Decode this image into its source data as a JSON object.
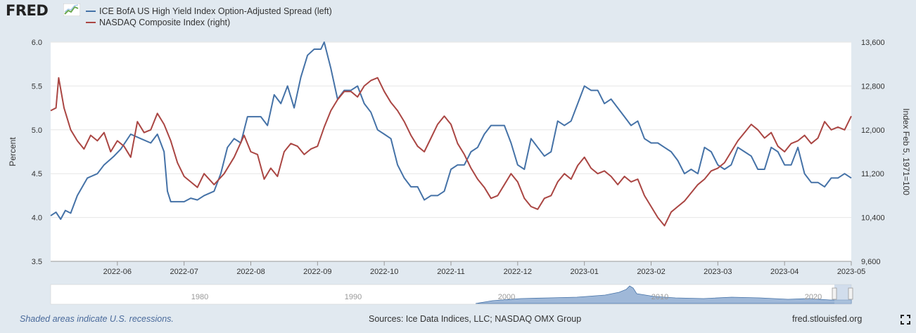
{
  "brand": {
    "name": "FRED"
  },
  "legend": {
    "items": [
      {
        "label": "ICE BofA US High Yield Index Option-Adjusted Spread (left)",
        "color": "#4572a7"
      },
      {
        "label": "NASDAQ Composite Index (right)",
        "color": "#aa4643"
      }
    ]
  },
  "chart_data": {
    "type": "line",
    "x_ticks": [
      "2022-06",
      "2022-07",
      "2022-08",
      "2022-09",
      "2022-10",
      "2022-11",
      "2022-12",
      "2023-01",
      "2023-02",
      "2023-03",
      "2023-04",
      "2023-05"
    ],
    "left_axis": {
      "label": "Percent",
      "ylim": [
        3.5,
        6.0
      ],
      "ticks": [
        "3.5",
        "4.0",
        "4.5",
        "5.0",
        "5.5",
        "6.0"
      ]
    },
    "right_axis": {
      "label": "Index Feb 5, 1971=100",
      "ylim": [
        9600,
        13600
      ],
      "ticks": [
        "9,600",
        "10,400",
        "11,200",
        "12,000",
        "12,800",
        "13,600"
      ]
    },
    "x_range_months": [
      0,
      12
    ],
    "series": [
      {
        "name": "ICE BofA US High Yield Index Option-Adjusted Spread (left)",
        "axis": "left",
        "color": "#4572a7",
        "points": [
          [
            0,
            4.02
          ],
          [
            0.08,
            4.06
          ],
          [
            0.15,
            3.98
          ],
          [
            0.22,
            4.08
          ],
          [
            0.3,
            4.05
          ],
          [
            0.4,
            4.25
          ],
          [
            0.55,
            4.45
          ],
          [
            0.7,
            4.5
          ],
          [
            0.8,
            4.6
          ],
          [
            0.95,
            4.7
          ],
          [
            1.05,
            4.78
          ],
          [
            1.2,
            4.95
          ],
          [
            1.35,
            4.9
          ],
          [
            1.5,
            4.85
          ],
          [
            1.6,
            4.95
          ],
          [
            1.7,
            4.75
          ],
          [
            1.75,
            4.3
          ],
          [
            1.8,
            4.18
          ],
          [
            1.9,
            4.18
          ],
          [
            2.0,
            4.18
          ],
          [
            2.1,
            4.22
          ],
          [
            2.2,
            4.2
          ],
          [
            2.3,
            4.25
          ],
          [
            2.45,
            4.3
          ],
          [
            2.55,
            4.5
          ],
          [
            2.65,
            4.8
          ],
          [
            2.75,
            4.9
          ],
          [
            2.85,
            4.85
          ],
          [
            2.95,
            5.15
          ],
          [
            3.05,
            5.15
          ],
          [
            3.15,
            5.15
          ],
          [
            3.25,
            5.05
          ],
          [
            3.35,
            5.4
          ],
          [
            3.45,
            5.3
          ],
          [
            3.55,
            5.5
          ],
          [
            3.65,
            5.25
          ],
          [
            3.75,
            5.6
          ],
          [
            3.85,
            5.85
          ],
          [
            3.95,
            5.92
          ],
          [
            4.05,
            5.92
          ],
          [
            4.1,
            6.0
          ],
          [
            4.2,
            5.7
          ],
          [
            4.3,
            5.35
          ],
          [
            4.4,
            5.45
          ],
          [
            4.5,
            5.45
          ],
          [
            4.6,
            5.5
          ],
          [
            4.7,
            5.3
          ],
          [
            4.8,
            5.2
          ],
          [
            4.9,
            5.0
          ],
          [
            5.0,
            4.95
          ],
          [
            5.1,
            4.9
          ],
          [
            5.2,
            4.6
          ],
          [
            5.3,
            4.45
          ],
          [
            5.4,
            4.35
          ],
          [
            5.5,
            4.35
          ],
          [
            5.6,
            4.2
          ],
          [
            5.7,
            4.25
          ],
          [
            5.8,
            4.25
          ],
          [
            5.9,
            4.3
          ],
          [
            6.0,
            4.55
          ],
          [
            6.1,
            4.6
          ],
          [
            6.2,
            4.6
          ],
          [
            6.3,
            4.75
          ],
          [
            6.4,
            4.8
          ],
          [
            6.5,
            4.95
          ],
          [
            6.6,
            5.05
          ],
          [
            6.7,
            5.05
          ],
          [
            6.8,
            5.05
          ],
          [
            6.9,
            4.85
          ],
          [
            7.0,
            4.6
          ],
          [
            7.1,
            4.55
          ],
          [
            7.2,
            4.9
          ],
          [
            7.3,
            4.8
          ],
          [
            7.4,
            4.7
          ],
          [
            7.5,
            4.75
          ],
          [
            7.6,
            5.1
          ],
          [
            7.7,
            5.05
          ],
          [
            7.8,
            5.1
          ],
          [
            7.9,
            5.3
          ],
          [
            8.0,
            5.5
          ],
          [
            8.1,
            5.45
          ],
          [
            8.2,
            5.45
          ],
          [
            8.3,
            5.3
          ],
          [
            8.4,
            5.35
          ],
          [
            8.5,
            5.25
          ],
          [
            8.6,
            5.15
          ],
          [
            8.7,
            5.05
          ],
          [
            8.8,
            5.1
          ],
          [
            8.9,
            4.9
          ],
          [
            9.0,
            4.85
          ],
          [
            9.1,
            4.85
          ],
          [
            9.2,
            4.8
          ],
          [
            9.3,
            4.75
          ],
          [
            9.4,
            4.65
          ],
          [
            9.5,
            4.5
          ],
          [
            9.6,
            4.55
          ],
          [
            9.7,
            4.5
          ],
          [
            9.8,
            4.8
          ],
          [
            9.9,
            4.75
          ],
          [
            10.0,
            4.6
          ],
          [
            10.1,
            4.55
          ],
          [
            10.2,
            4.6
          ],
          [
            10.3,
            4.8
          ],
          [
            10.4,
            4.75
          ],
          [
            10.5,
            4.7
          ],
          [
            10.6,
            4.55
          ],
          [
            10.7,
            4.55
          ],
          [
            10.8,
            4.8
          ],
          [
            10.9,
            4.75
          ],
          [
            11.0,
            4.6
          ],
          [
            11.1,
            4.6
          ],
          [
            11.2,
            4.8
          ],
          [
            11.3,
            4.5
          ],
          [
            11.4,
            4.4
          ],
          [
            11.5,
            4.4
          ],
          [
            11.6,
            4.35
          ],
          [
            11.7,
            4.45
          ],
          [
            11.8,
            4.45
          ],
          [
            11.9,
            4.5
          ],
          [
            12.0,
            4.45
          ]
        ]
      },
      {
        "name": "NASDAQ Composite Index (right)",
        "axis": "right",
        "color": "#aa4643",
        "points": [
          [
            0,
            12350
          ],
          [
            0.08,
            12400
          ],
          [
            0.12,
            12950
          ],
          [
            0.2,
            12400
          ],
          [
            0.3,
            12000
          ],
          [
            0.4,
            11800
          ],
          [
            0.5,
            11650
          ],
          [
            0.6,
            11900
          ],
          [
            0.7,
            11800
          ],
          [
            0.8,
            11950
          ],
          [
            0.9,
            11600
          ],
          [
            1.0,
            11800
          ],
          [
            1.1,
            11700
          ],
          [
            1.2,
            11500
          ],
          [
            1.3,
            12150
          ],
          [
            1.4,
            11950
          ],
          [
            1.5,
            12000
          ],
          [
            1.6,
            12300
          ],
          [
            1.7,
            12100
          ],
          [
            1.8,
            11800
          ],
          [
            1.9,
            11400
          ],
          [
            2.0,
            11150
          ],
          [
            2.1,
            11050
          ],
          [
            2.2,
            10950
          ],
          [
            2.3,
            11200
          ],
          [
            2.45,
            11000
          ],
          [
            2.6,
            11200
          ],
          [
            2.75,
            11500
          ],
          [
            2.9,
            11900
          ],
          [
            3.0,
            11600
          ],
          [
            3.1,
            11550
          ],
          [
            3.2,
            11100
          ],
          [
            3.3,
            11300
          ],
          [
            3.4,
            11150
          ],
          [
            3.5,
            11600
          ],
          [
            3.6,
            11750
          ],
          [
            3.7,
            11700
          ],
          [
            3.8,
            11550
          ],
          [
            3.9,
            11650
          ],
          [
            4.0,
            11700
          ],
          [
            4.1,
            12050
          ],
          [
            4.2,
            12350
          ],
          [
            4.3,
            12550
          ],
          [
            4.4,
            12700
          ],
          [
            4.5,
            12700
          ],
          [
            4.6,
            12600
          ],
          [
            4.7,
            12800
          ],
          [
            4.8,
            12900
          ],
          [
            4.9,
            12950
          ],
          [
            5.0,
            12700
          ],
          [
            5.1,
            12500
          ],
          [
            5.2,
            12350
          ],
          [
            5.3,
            12150
          ],
          [
            5.4,
            11900
          ],
          [
            5.5,
            11700
          ],
          [
            5.6,
            11600
          ],
          [
            5.7,
            11850
          ],
          [
            5.8,
            12100
          ],
          [
            5.9,
            12250
          ],
          [
            6.0,
            12100
          ],
          [
            6.1,
            11750
          ],
          [
            6.2,
            11550
          ],
          [
            6.3,
            11300
          ],
          [
            6.4,
            11100
          ],
          [
            6.5,
            10950
          ],
          [
            6.6,
            10750
          ],
          [
            6.7,
            10800
          ],
          [
            6.8,
            11000
          ],
          [
            6.9,
            11200
          ],
          [
            7.0,
            11050
          ],
          [
            7.1,
            10750
          ],
          [
            7.2,
            10600
          ],
          [
            7.3,
            10550
          ],
          [
            7.4,
            10750
          ],
          [
            7.5,
            10800
          ],
          [
            7.6,
            11050
          ],
          [
            7.7,
            11200
          ],
          [
            7.8,
            11100
          ],
          [
            7.9,
            11350
          ],
          [
            8.0,
            11500
          ],
          [
            8.1,
            11300
          ],
          [
            8.2,
            11200
          ],
          [
            8.3,
            11250
          ],
          [
            8.4,
            11150
          ],
          [
            8.5,
            11000
          ],
          [
            8.6,
            11150
          ],
          [
            8.7,
            11050
          ],
          [
            8.8,
            11100
          ],
          [
            8.9,
            10800
          ],
          [
            9.0,
            10600
          ],
          [
            9.1,
            10400
          ],
          [
            9.2,
            10250
          ],
          [
            9.3,
            10500
          ],
          [
            9.4,
            10600
          ],
          [
            9.5,
            10700
          ],
          [
            9.6,
            10850
          ],
          [
            9.7,
            11000
          ],
          [
            9.8,
            11100
          ],
          [
            9.9,
            11250
          ],
          [
            10.0,
            11300
          ],
          [
            10.1,
            11400
          ],
          [
            10.2,
            11600
          ],
          [
            10.3,
            11800
          ],
          [
            10.4,
            11950
          ],
          [
            10.5,
            12100
          ],
          [
            10.6,
            12000
          ],
          [
            10.7,
            11850
          ],
          [
            10.8,
            11950
          ],
          [
            10.9,
            11700
          ],
          [
            11.0,
            11600
          ],
          [
            11.1,
            11750
          ],
          [
            11.2,
            11800
          ],
          [
            11.3,
            11900
          ],
          [
            11.4,
            11750
          ],
          [
            11.5,
            11850
          ],
          [
            11.6,
            12150
          ],
          [
            11.7,
            12000
          ],
          [
            11.8,
            12050
          ],
          [
            11.9,
            12000
          ],
          [
            12.0,
            12250
          ]
        ]
      }
    ]
  },
  "navigator": {
    "labels": [
      "1980",
      "1990",
      "2000",
      "2010",
      "2020"
    ]
  },
  "footer": {
    "recession_note": "Shaded areas indicate U.S. recessions.",
    "sources": "Sources: Ice Data Indices, LLC; NASDAQ OMX Group",
    "site": "fred.stlouisfed.org"
  }
}
